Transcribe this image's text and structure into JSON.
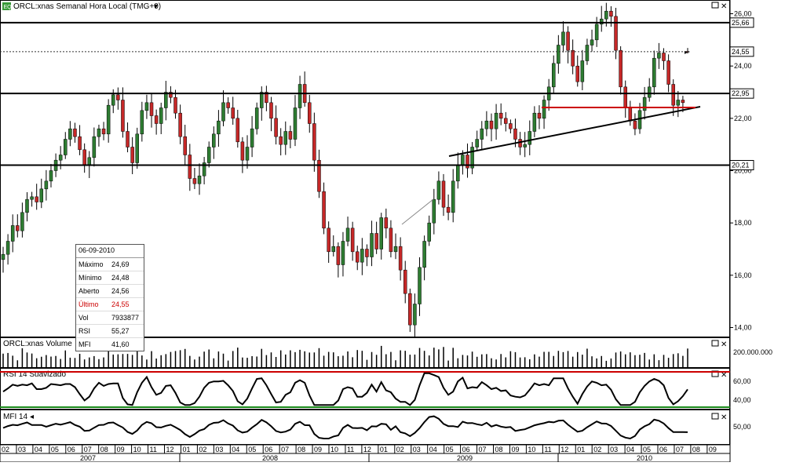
{
  "window": {
    "title": "ORCL:xnas Semanal Hora Local (TMG+0)",
    "volume_title": "ORCL:xnas Volume",
    "rsi_title": "RSI 14 Suavizado",
    "mfi_title": "MFI 14"
  },
  "colors": {
    "up": "#2e7d32",
    "down": "#c62828",
    "accent_red": "#cc0000",
    "green_line": "#1a8a1a"
  },
  "info": {
    "date": "06-09-2010",
    "rows": [
      {
        "k": "Máximo",
        "v": "24,69"
      },
      {
        "k": "Mínimo",
        "v": "24,48"
      },
      {
        "k": "Aberto",
        "v": "24,56"
      },
      {
        "k": "Último",
        "v": "24,55"
      },
      {
        "k": "Vol",
        "v": "7933877"
      },
      {
        "k": "RSI",
        "v": "55,27"
      },
      {
        "k": "MFI",
        "v": "41,60"
      }
    ]
  },
  "axis": {
    "price_ticks": [
      "26,00",
      "24,00",
      "22,00",
      "20,00",
      "18,00",
      "16,00",
      "14,00"
    ],
    "price_levels": [
      {
        "label": "25,66",
        "value": 25.66
      },
      {
        "label": "24,55",
        "value": 24.55,
        "dotted": true,
        "red": true
      },
      {
        "label": "22,95",
        "value": 22.95
      },
      {
        "label": "20,21",
        "value": 20.21
      }
    ],
    "volume_tick": "200.000.000",
    "rsi_ticks": [
      "60,00",
      "40,00"
    ],
    "mfi_tick": "50,00",
    "months": [
      "02",
      "03",
      "04",
      "05",
      "06",
      "07",
      "08",
      "09",
      "10",
      "11",
      "12",
      "01",
      "02",
      "03",
      "04",
      "05",
      "06",
      "07",
      "08",
      "09",
      "10",
      "11",
      "12",
      "01",
      "02",
      "03",
      "04",
      "05",
      "06",
      "07",
      "08",
      "09",
      "10",
      "11",
      "12",
      "01",
      "02",
      "03",
      "04",
      "05",
      "06",
      "07",
      "08",
      "09"
    ],
    "years": [
      "2007",
      "2008",
      "2009",
      "2010"
    ]
  },
  "chart_data": [
    {
      "type": "candlestick",
      "title": "ORCL:xnas Semanal Hora Local (TMG+0)",
      "x_unit": "week",
      "ylim": [
        13.5,
        26.5
      ],
      "close": [
        16.8,
        17.3,
        17.9,
        17.7,
        18.4,
        18.9,
        19.0,
        18.8,
        19.3,
        19.6,
        20.0,
        20.4,
        20.6,
        21.2,
        21.6,
        21.3,
        20.8,
        20.2,
        20.5,
        21.3,
        21.6,
        21.4,
        22.5,
        22.9,
        22.7,
        21.5,
        20.9,
        20.3,
        21.4,
        22.3,
        22.6,
        22.1,
        21.8,
        22.4,
        23.0,
        22.8,
        22.2,
        21.3,
        20.6,
        19.7,
        19.5,
        19.8,
        20.3,
        20.9,
        21.4,
        21.9,
        22.6,
        22.4,
        22.0,
        21.1,
        20.4,
        20.9,
        21.6,
        22.4,
        23.0,
        22.6,
        22.0,
        21.3,
        21.0,
        21.5,
        21.2,
        22.4,
        23.3,
        22.6,
        21.8,
        20.4,
        19.2,
        17.8,
        16.9,
        17.1,
        16.4,
        17.3,
        17.8,
        16.9,
        16.5,
        17.0,
        16.7,
        17.6,
        17.0,
        18.2,
        17.8,
        16.9,
        17.1,
        16.2,
        15.3,
        14.1,
        14.9,
        16.3,
        17.3,
        18.0,
        18.9,
        19.6,
        18.6,
        18.4,
        19.6,
        20.2,
        20.6,
        20.1,
        20.9,
        21.2,
        21.6,
        21.9,
        21.6,
        22.2,
        22.0,
        21.8,
        21.6,
        21.2,
        20.9,
        21.0,
        21.5,
        22.2,
        22.0,
        22.7,
        23.2,
        24.1,
        24.8,
        25.3,
        24.6,
        24.0,
        23.4,
        24.2,
        24.8,
        25.0,
        25.6,
        25.8,
        26.1,
        25.9,
        24.6,
        23.2,
        22.4,
        21.9,
        21.6,
        22.3,
        22.8,
        23.2,
        24.3,
        24.5,
        24.2,
        23.3,
        22.5,
        22.7,
        22.6,
        24.55
      ],
      "high_last": 24.69,
      "low_last": 24.48,
      "open_last": 24.56
    },
    {
      "type": "bar",
      "title": "ORCL:xnas Volume",
      "ylim": [
        0,
        250000000
      ]
    },
    {
      "type": "line",
      "title": "RSI 14 Suavizado",
      "ylim": [
        25,
        80
      ],
      "last": 55.27
    },
    {
      "type": "line",
      "title": "MFI 14",
      "ylim": [
        20,
        80
      ],
      "last": 41.6
    }
  ]
}
